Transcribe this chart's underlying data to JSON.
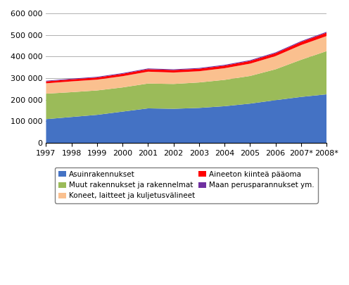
{
  "years": [
    "1997",
    "1998",
    "1999",
    "2000",
    "2001",
    "2002",
    "2003",
    "2004",
    "2005",
    "2006",
    "2007*",
    "2008*"
  ],
  "asuinrakennukset": [
    110000,
    120000,
    130000,
    145000,
    160000,
    158000,
    162000,
    170000,
    182000,
    198000,
    213000,
    225000
  ],
  "muut_rakennukset": [
    118000,
    115000,
    113000,
    112000,
    115000,
    115000,
    118000,
    122000,
    128000,
    143000,
    172000,
    200000
  ],
  "koneet": [
    48000,
    50000,
    50000,
    52000,
    55000,
    53000,
    52000,
    54000,
    57000,
    61000,
    68000,
    70000
  ],
  "aineeton": [
    9000,
    9500,
    10000,
    11000,
    11500,
    11500,
    11500,
    12000,
    12500,
    13500,
    14500,
    15500
  ],
  "maan_perusparannukset": [
    3000,
    3100,
    3200,
    3300,
    3400,
    3400,
    3500,
    3600,
    3700,
    3800,
    3900,
    4000
  ],
  "colors": {
    "asuinrakennukset": "#4472C4",
    "muut_rakennukset": "#9BBB59",
    "koneet": "#FAC08F",
    "aineeton": "#FF0000",
    "maan_perusparannukset": "#7030A0"
  },
  "legend_labels": {
    "asuinrakennukset": "Asuinrakennukset",
    "muut_rakennukset": "Muut rakennukset ja rakennelmat",
    "koneet": "Koneet, laitteet ja kuljetusvälineet",
    "aineeton": "Aineeton kiinteä pääoma",
    "maan_perusparannukset": "Maan perusparannukset ym."
  },
  "ylim": [
    0,
    600000
  ],
  "yticks": [
    0,
    100000,
    200000,
    300000,
    400000,
    500000,
    600000
  ],
  "background_color": "#ffffff",
  "grid_color": "#b0b0b0"
}
